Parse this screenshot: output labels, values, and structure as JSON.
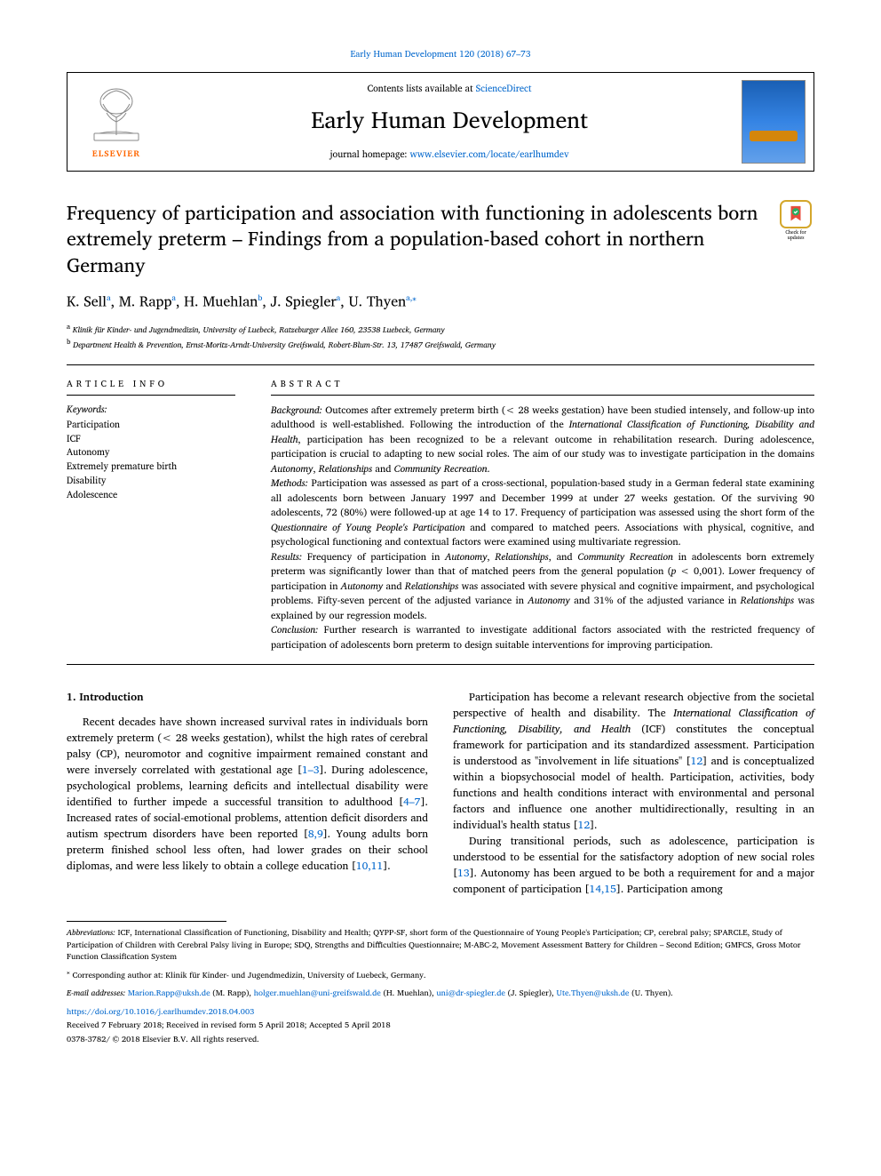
{
  "journal_ref": "Early Human Development 120 (2018) 67–73",
  "header": {
    "contents_prefix": "Contents lists available at ",
    "contents_link": "ScienceDirect",
    "journal_name": "Early Human Development",
    "homepage_prefix": "journal homepage: ",
    "homepage_link": "www.elsevier.com/locate/earlhumdev",
    "elsevier_label": "ELSEVIER"
  },
  "check_updates": "Check for updates",
  "title": "Frequency of participation and association with functioning in adolescents born extremely preterm – Findings from a population-based cohort in northern Germany",
  "authors_html": "K. Sell<sup>a</sup>, M. Rapp<sup>a</sup>, H. Muehlan<sup>b</sup>, J. Spiegler<sup>a</sup>, U. Thyen<sup>a,</sup><sup>⁎</sup>",
  "affiliations": {
    "a": "Klinik für Kinder- und Jugendmedizin, University of Luebeck, Ratzeburger Allee 160, 23538 Luebeck, Germany",
    "b": "Department Health & Prevention, Ernst-Moritz-Arndt-University Greifswald, Robert-Blum-Str. 13, 17487 Greifswald, Germany"
  },
  "article_info_label": "ARTICLE INFO",
  "keywords_label": "Keywords:",
  "keywords": [
    "Participation",
    "ICF",
    "Autonomy",
    "Extremely premature birth",
    "Disability",
    "Adolescence"
  ],
  "abstract_label": "ABSTRACT",
  "abstract": {
    "background_label": "Background:",
    "background": "Outcomes after extremely preterm birth (< 28 weeks gestation) have been studied intensely, and follow-up into adulthood is well-established. Following the introduction of the International Classification of Functioning, Disability and Health, participation has been recognized to be a relevant outcome in rehabilitation research. During adolescence, participation is crucial to adapting to new social roles. The aim of our study was to investigate participation in the domains Autonomy, Relationships and Community Recreation.",
    "methods_label": "Methods:",
    "methods": "Participation was assessed as part of a cross-sectional, population-based study in a German federal state examining all adolescents born between January 1997 and December 1999 at under 27 weeks gestation. Of the surviving 90 adolescents, 72 (80%) were followed-up at age 14 to 17. Frequency of participation was assessed using the short form of the Questionnaire of Young People's Participation and compared to matched peers. Associations with physical, cognitive, and psychological functioning and contextual factors were examined using multivariate regression.",
    "results_label": "Results:",
    "results": "Frequency of participation in Autonomy, Relationships, and Community Recreation in adolescents born extremely preterm was significantly lower than that of matched peers from the general population (p < 0,001). Lower frequency of participation in Autonomy and Relationships was associated with severe physical and cognitive impairment, and psychological problems. Fifty-seven percent of the adjusted variance in Autonomy and 31% of the adjusted variance in Relationships was explained by our regression models.",
    "conclusion_label": "Conclusion:",
    "conclusion": "Further research is warranted to investigate additional factors associated with the restricted frequency of participation of adolescents born preterm to design suitable interventions for improving participation."
  },
  "body": {
    "heading": "1. Introduction",
    "p1": "Recent decades have shown increased survival rates in individuals born extremely preterm (< 28 weeks gestation), whilst the high rates of cerebral palsy (CP), neuromotor and cognitive impairment remained constant and were inversely correlated with gestational age [1–3]. During adolescence, psychological problems, learning deficits and intellectual disability were identified to further impede a successful transition to adulthood [4–7]. Increased rates of social-emotional problems, attention deficit disorders and autism spectrum disorders have been reported [8,9]. Young adults born preterm finished school less often, had lower grades on their school diplomas, and were less likely to obtain a college education [10,11].",
    "p2": "Participation has become a relevant research objective from the societal perspective of health and disability. The International Classification of Functioning, Disability, and Health (ICF) constitutes the conceptual framework for participation and its standardized assessment. Participation is understood as \"involvement in life situations\" [12] and is conceptualized within a biopsychosocial model of health. Participation, activities, body functions and health conditions interact with environmental and personal factors and influence one another multidirectionally, resulting in an individual's health status [12].",
    "p3": "During transitional periods, such as adolescence, participation is understood to be essential for the satisfactory adoption of new social roles [13]. Autonomy has been argued to be both a requirement for and a major component of participation [14,15]. Participation among"
  },
  "footer": {
    "abbrev_label": "Abbreviations:",
    "abbrev": "ICF, International Classification of Functioning, Disability and Health; QYPP-SF, short form of the Questionnaire of Young People's Participation; CP, cerebral palsy; SPARCLE, Study of Participation of Children with Cerebral Palsy living in Europe; SDQ, Strengths and Difficulties Questionnaire; M-ABC-2, Movement Assessment Battery for Children – Second Edition; GMFCS, Gross Motor Function Classification System",
    "corresponding": "Corresponding author at: Klinik für Kinder- und Jugendmedizin, University of Luebeck, Germany.",
    "email_label": "E-mail addresses:",
    "emails": [
      {
        "addr": "Marion.Rapp@uksh.de",
        "who": "(M. Rapp)"
      },
      {
        "addr": "holger.muehlan@uni-greifswald.de",
        "who": "(H. Muehlan)"
      },
      {
        "addr": "uni@dr-spiegler.de",
        "who": "(J. Spiegler)"
      },
      {
        "addr": "Ute.Thyen@uksh.de",
        "who": "(U. Thyen)"
      }
    ],
    "doi": "https://doi.org/10.1016/j.earlhumdev.2018.04.003",
    "received": "Received 7 February 2018; Received in revised form 5 April 2018; Accepted 5 April 2018",
    "copyright": "0378-3782/ © 2018 Elsevier B.V. All rights reserved."
  },
  "colors": {
    "link": "#0066cc",
    "elsevier_orange": "#ff6600",
    "text": "#000000",
    "background": "#ffffff",
    "badge_border": "#d4a72c"
  },
  "typography": {
    "body_pt": 12,
    "abstract_pt": 11,
    "title_pt": 22,
    "journal_name_pt": 26,
    "authors_pt": 16,
    "affil_pt": 9,
    "footer_pt": 9.2
  }
}
